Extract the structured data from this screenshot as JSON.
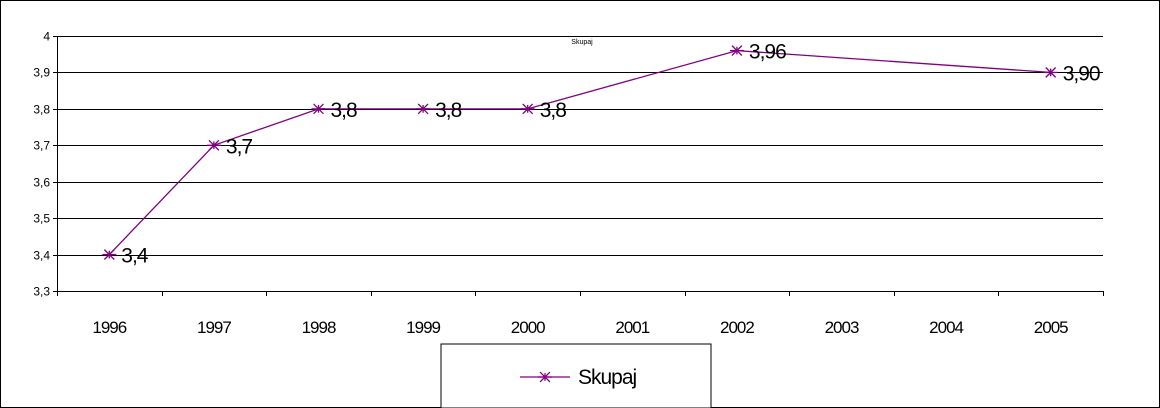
{
  "chart_data": {
    "type": "line",
    "title": "Skupaj",
    "xlabel": "",
    "ylabel": "",
    "categories": [
      "1996",
      "1997",
      "1998",
      "1999",
      "2000",
      "2001",
      "2002",
      "2003",
      "2004",
      "2005"
    ],
    "series": [
      {
        "name": "Skupaj",
        "color": "#800080",
        "marker": "asterisk",
        "values": [
          3.4,
          3.7,
          3.8,
          3.8,
          3.8,
          null,
          3.96,
          null,
          null,
          3.9
        ],
        "data_labels": [
          "3,4",
          "3,7",
          "3,8",
          "3,8",
          "3,8",
          null,
          "3,96",
          null,
          null,
          "3,90"
        ]
      }
    ],
    "ylim": [
      3.3,
      4.0
    ],
    "yticks": [
      3.3,
      3.4,
      3.5,
      3.6,
      3.7,
      3.8,
      3.9,
      4.0
    ],
    "ytick_labels": [
      "3,3",
      "3,4",
      "3,5",
      "3,6",
      "3,7",
      "3,8",
      "3,9",
      "4"
    ],
    "grid": true,
    "legend_position": "bottom"
  }
}
